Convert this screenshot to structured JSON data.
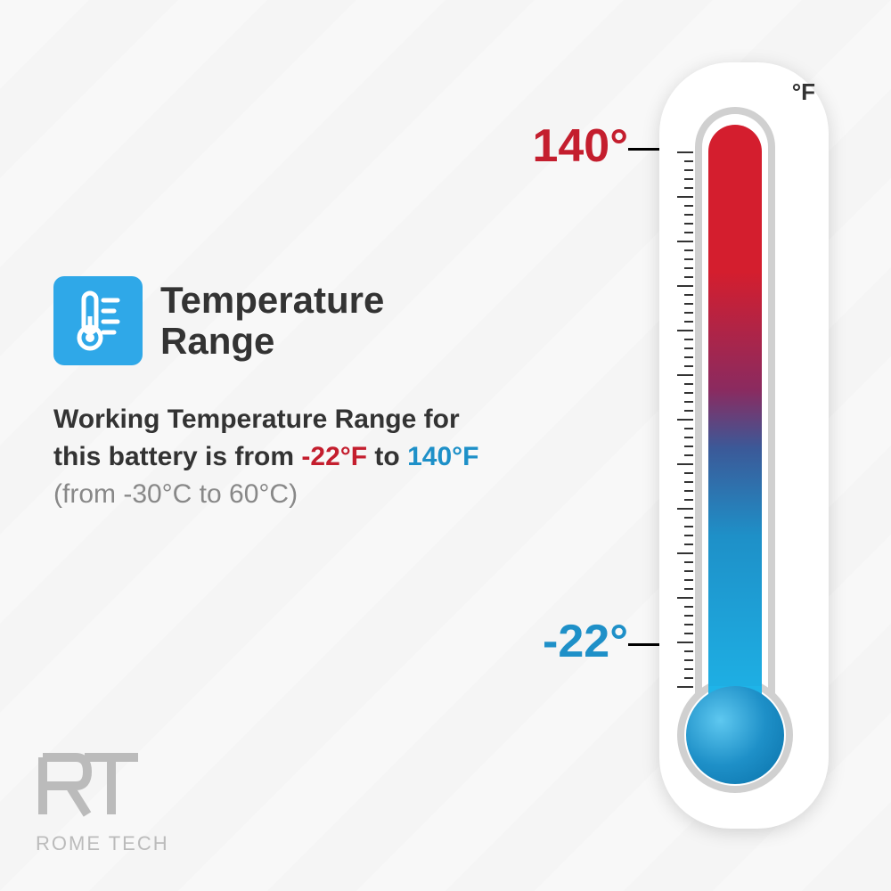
{
  "title": "Temperature Range",
  "description": {
    "prefix": "Working Temperature Range for this battery is from ",
    "low": "-22°F",
    "mid": " to ",
    "high": "140°F",
    "celsius": "(from -30°C to 60°C)"
  },
  "thermometer": {
    "unit_label": "°F",
    "high_value": "140°",
    "low_value": "-22°",
    "high_color": "#c41e2e",
    "low_color": "#1e90c8",
    "gradient_top": "#d41e2e",
    "gradient_bottom": "#1eb4e8",
    "body_color": "#ffffff",
    "outline_color": "#d0d0d0",
    "tick_count": 60,
    "major_every": 5
  },
  "icon": {
    "box_color": "#2fa8e8",
    "symbol_color": "#ffffff"
  },
  "text_colors": {
    "title": "#333333",
    "body": "#333333",
    "low": "#c41e2e",
    "high": "#1e90c8",
    "celsius": "#888888"
  },
  "logo": {
    "mark": "RT",
    "name": "ROME TECH",
    "color": "#bbbbbb"
  },
  "background": "#f5f5f5"
}
